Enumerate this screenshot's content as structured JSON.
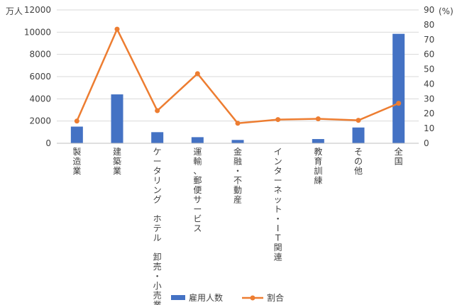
{
  "chart_data": {
    "type": "bar+line",
    "categories": [
      "製造業",
      "建築業",
      "ケータリング ホテル 卸売・小売業",
      "運輸、郵便サービス",
      "金融・不動産",
      "インターネット・IT関連",
      "教育訓練",
      "その他",
      "全国"
    ],
    "series": [
      {
        "name": "雇用人数",
        "type": "bar",
        "axis": "left",
        "color": "#4472C4",
        "values": [
          1500,
          4400,
          1000,
          550,
          300,
          0,
          380,
          1420,
          9850
        ]
      },
      {
        "name": "割合",
        "type": "line",
        "axis": "right",
        "color": "#ED7D31",
        "values": [
          15,
          77,
          22,
          47,
          13.5,
          16,
          16.5,
          15.5,
          27
        ]
      }
    ],
    "y_left": {
      "unit": "万人",
      "ylim": [
        0,
        12000
      ],
      "ticks": [
        "0",
        "2000",
        "4000",
        "6000",
        "8000",
        "10000",
        "12000"
      ]
    },
    "y_right": {
      "unit": "(%)",
      "ylim": [
        0,
        90
      ],
      "ticks": [
        "0",
        "10",
        "20",
        "30",
        "40",
        "50",
        "60",
        "70",
        "80",
        "90"
      ]
    },
    "grid": true,
    "legend_position": "bottom",
    "legend": [
      "雇用人数",
      "割合"
    ]
  }
}
